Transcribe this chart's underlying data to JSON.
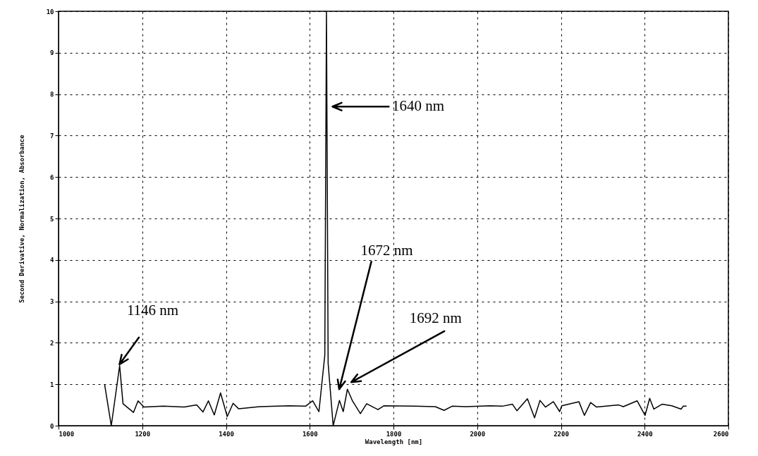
{
  "chart_data": {
    "type": "line",
    "xlabel": "Wavelength [nm]",
    "ylabel": "Second Derivative, Normalization, Absorbance",
    "xlim": [
      1000,
      2600
    ],
    "xticks": [
      1000,
      1200,
      1400,
      1600,
      1800,
      2000,
      2200,
      2400,
      2600
    ],
    "ylim": [
      0,
      10
    ],
    "yticks": [
      0,
      1,
      2,
      3,
      4,
      5,
      6,
      7,
      8,
      9,
      10
    ],
    "grid": true,
    "marker": "none",
    "line_style": "solid",
    "series": [
      {
        "color": "#000000",
        "x": [
          1110,
          1126,
          1146,
          1154,
          1179,
          1190,
          1204,
          1250,
          1300,
          1330,
          1345,
          1358,
          1372,
          1387,
          1403,
          1417,
          1430,
          1480,
          1550,
          1590,
          1607,
          1622,
          1636,
          1640,
          1644,
          1656,
          1671,
          1680,
          1690,
          1702,
          1721,
          1736,
          1763,
          1777,
          1850,
          1900,
          1921,
          1940,
          1973,
          2030,
          2060,
          2084,
          2095,
          2120,
          2137,
          2150,
          2163,
          2182,
          2197,
          2202,
          2243,
          2256,
          2271,
          2285,
          2338,
          2349,
          2382,
          2401,
          2412,
          2422,
          2442,
          2465,
          2487,
          2492,
          2500
        ],
        "values": [
          1.0,
          0.0,
          1.45,
          0.53,
          0.32,
          0.6,
          0.45,
          0.47,
          0.45,
          0.5,
          0.33,
          0.6,
          0.26,
          0.79,
          0.22,
          0.54,
          0.41,
          0.46,
          0.48,
          0.47,
          0.6,
          0.34,
          1.7,
          10,
          1.5,
          0.0,
          0.61,
          0.34,
          0.88,
          0.6,
          0.29,
          0.53,
          0.39,
          0.48,
          0.47,
          0.46,
          0.37,
          0.47,
          0.46,
          0.48,
          0.47,
          0.52,
          0.36,
          0.65,
          0.19,
          0.61,
          0.45,
          0.58,
          0.34,
          0.48,
          0.58,
          0.25,
          0.56,
          0.45,
          0.5,
          0.46,
          0.6,
          0.25,
          0.66,
          0.4,
          0.52,
          0.48,
          0.4,
          0.47,
          0.47
        ]
      }
    ],
    "annotations": [
      "1146 nm",
      "1640 nm",
      "1672 nm",
      "1692 nm"
    ]
  }
}
